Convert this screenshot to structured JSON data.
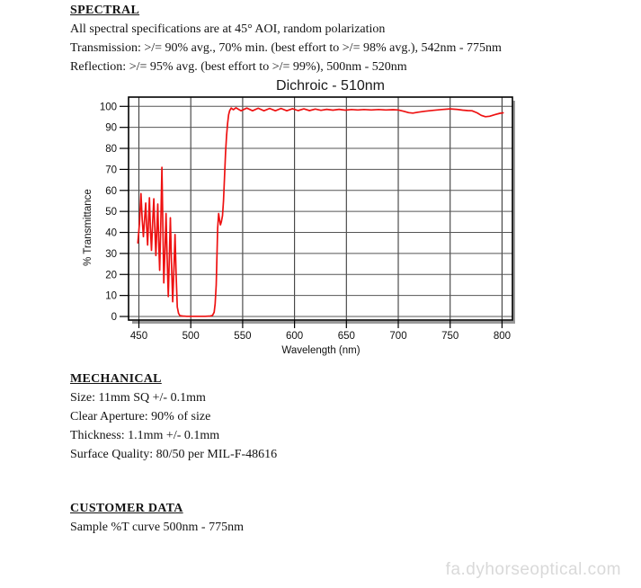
{
  "spectral": {
    "heading": "SPECTRAL",
    "lines": [
      "All spectral specifications are at 45° AOI, random polarization",
      "Transmission:  >/= 90% avg., 70% min. (best effort to >/= 98% avg.), 542nm - 775nm",
      "Reflection:  >/= 95% avg. (best effort to >/= 99%), 500nm - 520nm"
    ]
  },
  "chart_data": {
    "type": "line",
    "title": "Dichroic - 510nm",
    "xlabel": "Wavelength (nm)",
    "ylabel": "% Transmittance",
    "xlim": [
      440,
      810
    ],
    "ylim": [
      -2,
      105
    ],
    "x_ticks": [
      450,
      500,
      550,
      600,
      650,
      700,
      750,
      800
    ],
    "y_ticks": [
      0,
      10,
      20,
      30,
      40,
      50,
      60,
      70,
      80,
      90,
      100
    ],
    "grid": true,
    "line_color": "#ee1111",
    "series": [
      {
        "name": "Sample %T",
        "points": [
          [
            449,
            35
          ],
          [
            450.5,
            44
          ],
          [
            452,
            58.5
          ],
          [
            453.2,
            46
          ],
          [
            454.3,
            38
          ],
          [
            455.5,
            46
          ],
          [
            456.6,
            54
          ],
          [
            457.5,
            42
          ],
          [
            458.4,
            34
          ],
          [
            459.3,
            45
          ],
          [
            460.1,
            56.5
          ],
          [
            461.1,
            42
          ],
          [
            462.1,
            31.5
          ],
          [
            463.2,
            44
          ],
          [
            464.4,
            56
          ],
          [
            465.4,
            41
          ],
          [
            466.4,
            29
          ],
          [
            467.3,
            42
          ],
          [
            468.2,
            53.5
          ],
          [
            469.1,
            36
          ],
          [
            470,
            22
          ],
          [
            471.1,
            45
          ],
          [
            472.2,
            71
          ],
          [
            473.1,
            42
          ],
          [
            474,
            16
          ],
          [
            475.1,
            31
          ],
          [
            476.2,
            49
          ],
          [
            477.2,
            28
          ],
          [
            478.3,
            9.5
          ],
          [
            479.3,
            27
          ],
          [
            480.3,
            47
          ],
          [
            481.4,
            26
          ],
          [
            482.6,
            7
          ],
          [
            483.7,
            22
          ],
          [
            484.8,
            39
          ],
          [
            485.9,
            20
          ],
          [
            487,
            4.5
          ],
          [
            488.2,
            1.5
          ],
          [
            489.5,
            0.4
          ],
          [
            492,
            0.2
          ],
          [
            496,
            0.1
          ],
          [
            502,
            0.1
          ],
          [
            508,
            0.1
          ],
          [
            514,
            0.1
          ],
          [
            519,
            0.2
          ],
          [
            521,
            0.5
          ],
          [
            522.5,
            2
          ],
          [
            523.5,
            6
          ],
          [
            524.5,
            15
          ],
          [
            525.3,
            30
          ],
          [
            525.9,
            42
          ],
          [
            526.9,
            49
          ],
          [
            527.7,
            46
          ],
          [
            528.6,
            43.6
          ],
          [
            529.5,
            45
          ],
          [
            530.6,
            48
          ],
          [
            531.5,
            55
          ],
          [
            532.5,
            66
          ],
          [
            533.5,
            78
          ],
          [
            534.5,
            86
          ],
          [
            535.5,
            92
          ],
          [
            536.5,
            96
          ],
          [
            537.5,
            98
          ],
          [
            539,
            99.2
          ],
          [
            541,
            98.4
          ],
          [
            543.5,
            99.3
          ],
          [
            548.5,
            97.9
          ],
          [
            554,
            99.2
          ],
          [
            559.5,
            97.9
          ],
          [
            565,
            99.1
          ],
          [
            570.5,
            97.9
          ],
          [
            576,
            99
          ],
          [
            581.5,
            97.9
          ],
          [
            587,
            99
          ],
          [
            592.5,
            97.9
          ],
          [
            598,
            98.9
          ],
          [
            603.5,
            98
          ],
          [
            609,
            98.8
          ],
          [
            614.5,
            98
          ],
          [
            620,
            98.7
          ],
          [
            625.5,
            98.1
          ],
          [
            631,
            98.6
          ],
          [
            637,
            98.2
          ],
          [
            643,
            98.6
          ],
          [
            649,
            98.2
          ],
          [
            655,
            98.5
          ],
          [
            661,
            98.3
          ],
          [
            667,
            98.5
          ],
          [
            674,
            98.3
          ],
          [
            681,
            98.5
          ],
          [
            688,
            98.3
          ],
          [
            695,
            98.4
          ],
          [
            700,
            98.3
          ],
          [
            705,
            97.7
          ],
          [
            710,
            97
          ],
          [
            714,
            96.8
          ],
          [
            719,
            97.2
          ],
          [
            726,
            97.7
          ],
          [
            734,
            98.1
          ],
          [
            742,
            98.5
          ],
          [
            750,
            98.8
          ],
          [
            756,
            98.6
          ],
          [
            762,
            98.2
          ],
          [
            767,
            98
          ],
          [
            771,
            97.9
          ],
          [
            776,
            96.9
          ],
          [
            780,
            95.7
          ],
          [
            784,
            95.1
          ],
          [
            788,
            95.3
          ],
          [
            793,
            96
          ],
          [
            798,
            96.7
          ],
          [
            801,
            96.9
          ]
        ]
      }
    ]
  },
  "mechanical": {
    "heading": "MECHANICAL",
    "lines": [
      "Size: 11mm SQ +/- 0.1mm",
      "Clear Aperture:  90% of size",
      "Thickness: 1.1mm +/- 0.1mm",
      "Surface Quality: 80/50 per MIL-F-48616"
    ]
  },
  "customer_data": {
    "heading": "CUSTOMER DATA",
    "lines": [
      "Sample %T curve 500nm - 775nm"
    ]
  },
  "watermark": "fa.dyhorseoptical.com"
}
